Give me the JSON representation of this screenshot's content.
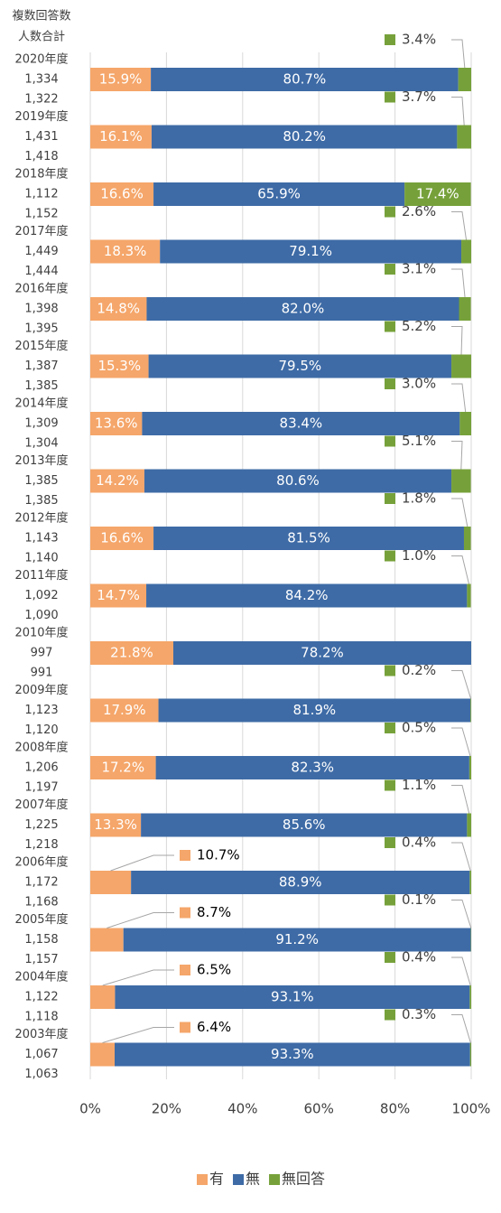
{
  "chart_data": {
    "type": "bar",
    "orientation": "horizontal",
    "stacked": true,
    "header_labels": [
      "複数回答数",
      "人数合計"
    ],
    "categories": [
      "2020年度",
      "2019年度",
      "2018年度",
      "2017年度",
      "2016年度",
      "2015年度",
      "2014年度",
      "2013年度",
      "2012年度",
      "2011年度",
      "2010年度",
      "2009年度",
      "2008年度",
      "2007年度",
      "2006年度",
      "2005年度",
      "2004年度",
      "2003年度"
    ],
    "answer_counts": [
      "1,334",
      "1,431",
      "1,112",
      "1,449",
      "1,398",
      "1,387",
      "1,309",
      "1,385",
      "1,143",
      "1,092",
      "997",
      "1,123",
      "1,206",
      "1,225",
      "1,172",
      "1,158",
      "1,122",
      "1,067"
    ],
    "respondent_counts": [
      "1,322",
      "1,418",
      "1,152",
      "1,444",
      "1,395",
      "1,385",
      "1,304",
      "1,385",
      "1,140",
      "1,090",
      "991",
      "1,120",
      "1,197",
      "1,218",
      "1,168",
      "1,157",
      "1,118",
      "1,063"
    ],
    "series": [
      {
        "name": "有",
        "color": "#f5a66a",
        "values": [
          15.9,
          16.1,
          16.6,
          18.3,
          14.8,
          15.3,
          13.6,
          14.2,
          16.6,
          14.7,
          21.8,
          17.9,
          17.2,
          13.3,
          10.7,
          8.7,
          6.5,
          6.4
        ],
        "value_labels": [
          "15.9%",
          "16.1%",
          "16.6%",
          "18.3%",
          "14.8%",
          "15.3%",
          "13.6%",
          "14.2%",
          "16.6%",
          "14.7%",
          "21.8%",
          "17.9%",
          "17.2%",
          "13.3%",
          "10.7%",
          "8.7%",
          "6.5%",
          "6.4%"
        ]
      },
      {
        "name": "無",
        "color": "#3e6ba6",
        "values": [
          80.7,
          80.2,
          65.9,
          79.1,
          82.0,
          79.5,
          83.4,
          80.6,
          81.5,
          84.2,
          78.2,
          81.9,
          82.3,
          85.6,
          88.9,
          91.2,
          93.1,
          93.3
        ],
        "value_labels": [
          "80.7%",
          "80.2%",
          "65.9%",
          "79.1%",
          "82.0%",
          "79.5%",
          "83.4%",
          "80.6%",
          "81.5%",
          "84.2%",
          "78.2%",
          "81.9%",
          "82.3%",
          "85.6%",
          "88.9%",
          "91.2%",
          "93.1%",
          "93.3%"
        ]
      },
      {
        "name": "無回答",
        "color": "#76a13a",
        "values": [
          3.4,
          3.7,
          17.4,
          2.6,
          3.1,
          5.2,
          3.0,
          5.1,
          1.8,
          1.0,
          null,
          0.2,
          0.5,
          1.1,
          0.4,
          0.1,
          0.4,
          0.3
        ],
        "value_labels": [
          "3.4%",
          "3.7%",
          "17.4%",
          "2.6%",
          "3.1%",
          "5.2%",
          "3.0%",
          "5.1%",
          "1.8%",
          "1.0%",
          null,
          "0.2%",
          "0.5%",
          "1.1%",
          "0.4%",
          "0.1%",
          "0.4%",
          "0.3%"
        ]
      }
    ],
    "xlim": [
      0,
      100
    ],
    "xticks": [
      {
        "value": 0,
        "label": "0%"
      },
      {
        "value": 20,
        "label": "20%"
      },
      {
        "value": 40,
        "label": "40%"
      },
      {
        "value": 60,
        "label": "60%"
      },
      {
        "value": 80,
        "label": "80%"
      },
      {
        "value": 100,
        "label": "100%"
      }
    ],
    "grid": true,
    "legend": "bottom"
  }
}
